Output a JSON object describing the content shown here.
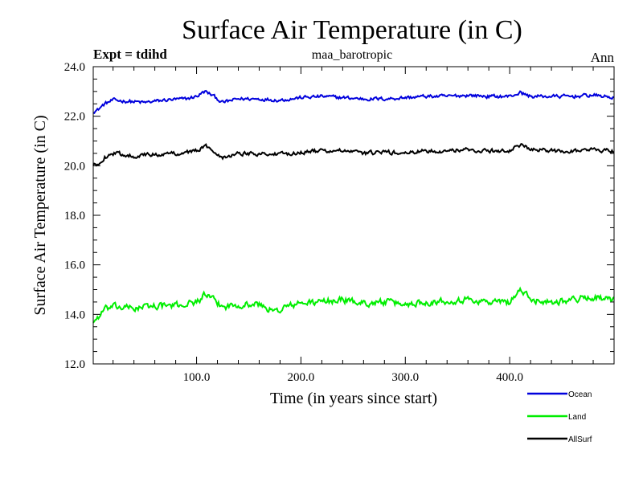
{
  "chart_data": {
    "type": "line",
    "title": "Surface Air Temperature (in C)",
    "subtitle_left": "Expt = tdihd",
    "subtitle_center": "maa_barotropic",
    "subtitle_right": "Ann",
    "xlabel": "Time (in years since start)",
    "ylabel": "Surface Air Temperature (in C)",
    "xlim": [
      1,
      500
    ],
    "ylim": [
      12.0,
      24.0
    ],
    "x_ticks": [
      100,
      200,
      300,
      400
    ],
    "x_tick_labels": [
      "100.0",
      "200.0",
      "300.0",
      "400.0"
    ],
    "y_ticks": [
      12,
      14,
      16,
      18,
      20,
      22,
      24
    ],
    "y_tick_labels": [
      "12.0",
      "14.0",
      "16.0",
      "18.0",
      "20.0",
      "22.0",
      "24.0"
    ],
    "legend_position": "bottom-right",
    "series": [
      {
        "name": "Ocean",
        "color": "#0000dd",
        "anchors": [
          [
            1,
            22.2
          ],
          [
            5,
            22.25
          ],
          [
            12,
            22.5
          ],
          [
            20,
            22.65
          ],
          [
            35,
            22.6
          ],
          [
            50,
            22.55
          ],
          [
            70,
            22.65
          ],
          [
            90,
            22.7
          ],
          [
            100,
            22.8
          ],
          [
            108,
            23.0
          ],
          [
            115,
            22.85
          ],
          [
            125,
            22.55
          ],
          [
            140,
            22.7
          ],
          [
            160,
            22.7
          ],
          [
            180,
            22.65
          ],
          [
            200,
            22.75
          ],
          [
            220,
            22.8
          ],
          [
            240,
            22.75
          ],
          [
            260,
            22.7
          ],
          [
            280,
            22.7
          ],
          [
            300,
            22.75
          ],
          [
            320,
            22.8
          ],
          [
            340,
            22.8
          ],
          [
            360,
            22.85
          ],
          [
            380,
            22.8
          ],
          [
            400,
            22.8
          ],
          [
            410,
            22.95
          ],
          [
            420,
            22.8
          ],
          [
            440,
            22.8
          ],
          [
            460,
            22.8
          ],
          [
            480,
            22.85
          ],
          [
            500,
            22.75
          ]
        ],
        "noise": 0.07
      },
      {
        "name": "Land",
        "color": "#00ee00",
        "anchors": [
          [
            1,
            13.7
          ],
          [
            5,
            13.85
          ],
          [
            12,
            14.2
          ],
          [
            20,
            14.3
          ],
          [
            40,
            14.25
          ],
          [
            60,
            14.35
          ],
          [
            80,
            14.35
          ],
          [
            100,
            14.5
          ],
          [
            108,
            14.8
          ],
          [
            115,
            14.6
          ],
          [
            125,
            14.3
          ],
          [
            140,
            14.4
          ],
          [
            160,
            14.4
          ],
          [
            175,
            14.1
          ],
          [
            185,
            14.3
          ],
          [
            200,
            14.45
          ],
          [
            220,
            14.5
          ],
          [
            240,
            14.6
          ],
          [
            260,
            14.45
          ],
          [
            280,
            14.5
          ],
          [
            300,
            14.4
          ],
          [
            320,
            14.5
          ],
          [
            340,
            14.55
          ],
          [
            360,
            14.6
          ],
          [
            380,
            14.5
          ],
          [
            400,
            14.5
          ],
          [
            410,
            15.0
          ],
          [
            420,
            14.6
          ],
          [
            440,
            14.5
          ],
          [
            460,
            14.6
          ],
          [
            480,
            14.7
          ],
          [
            500,
            14.55
          ]
        ],
        "noise": 0.13
      },
      {
        "name": "AllSurf",
        "color": "#000000",
        "anchors": [
          [
            1,
            20.0
          ],
          [
            5,
            20.05
          ],
          [
            12,
            20.35
          ],
          [
            20,
            20.5
          ],
          [
            40,
            20.4
          ],
          [
            60,
            20.45
          ],
          [
            80,
            20.5
          ],
          [
            100,
            20.6
          ],
          [
            108,
            20.8
          ],
          [
            115,
            20.65
          ],
          [
            125,
            20.35
          ],
          [
            140,
            20.5
          ],
          [
            160,
            20.5
          ],
          [
            180,
            20.45
          ],
          [
            200,
            20.55
          ],
          [
            220,
            20.6
          ],
          [
            240,
            20.6
          ],
          [
            260,
            20.5
          ],
          [
            280,
            20.55
          ],
          [
            300,
            20.5
          ],
          [
            320,
            20.6
          ],
          [
            340,
            20.6
          ],
          [
            360,
            20.65
          ],
          [
            380,
            20.6
          ],
          [
            400,
            20.6
          ],
          [
            410,
            20.85
          ],
          [
            420,
            20.65
          ],
          [
            440,
            20.6
          ],
          [
            460,
            20.6
          ],
          [
            480,
            20.65
          ],
          [
            500,
            20.6
          ]
        ],
        "noise": 0.08
      }
    ]
  }
}
